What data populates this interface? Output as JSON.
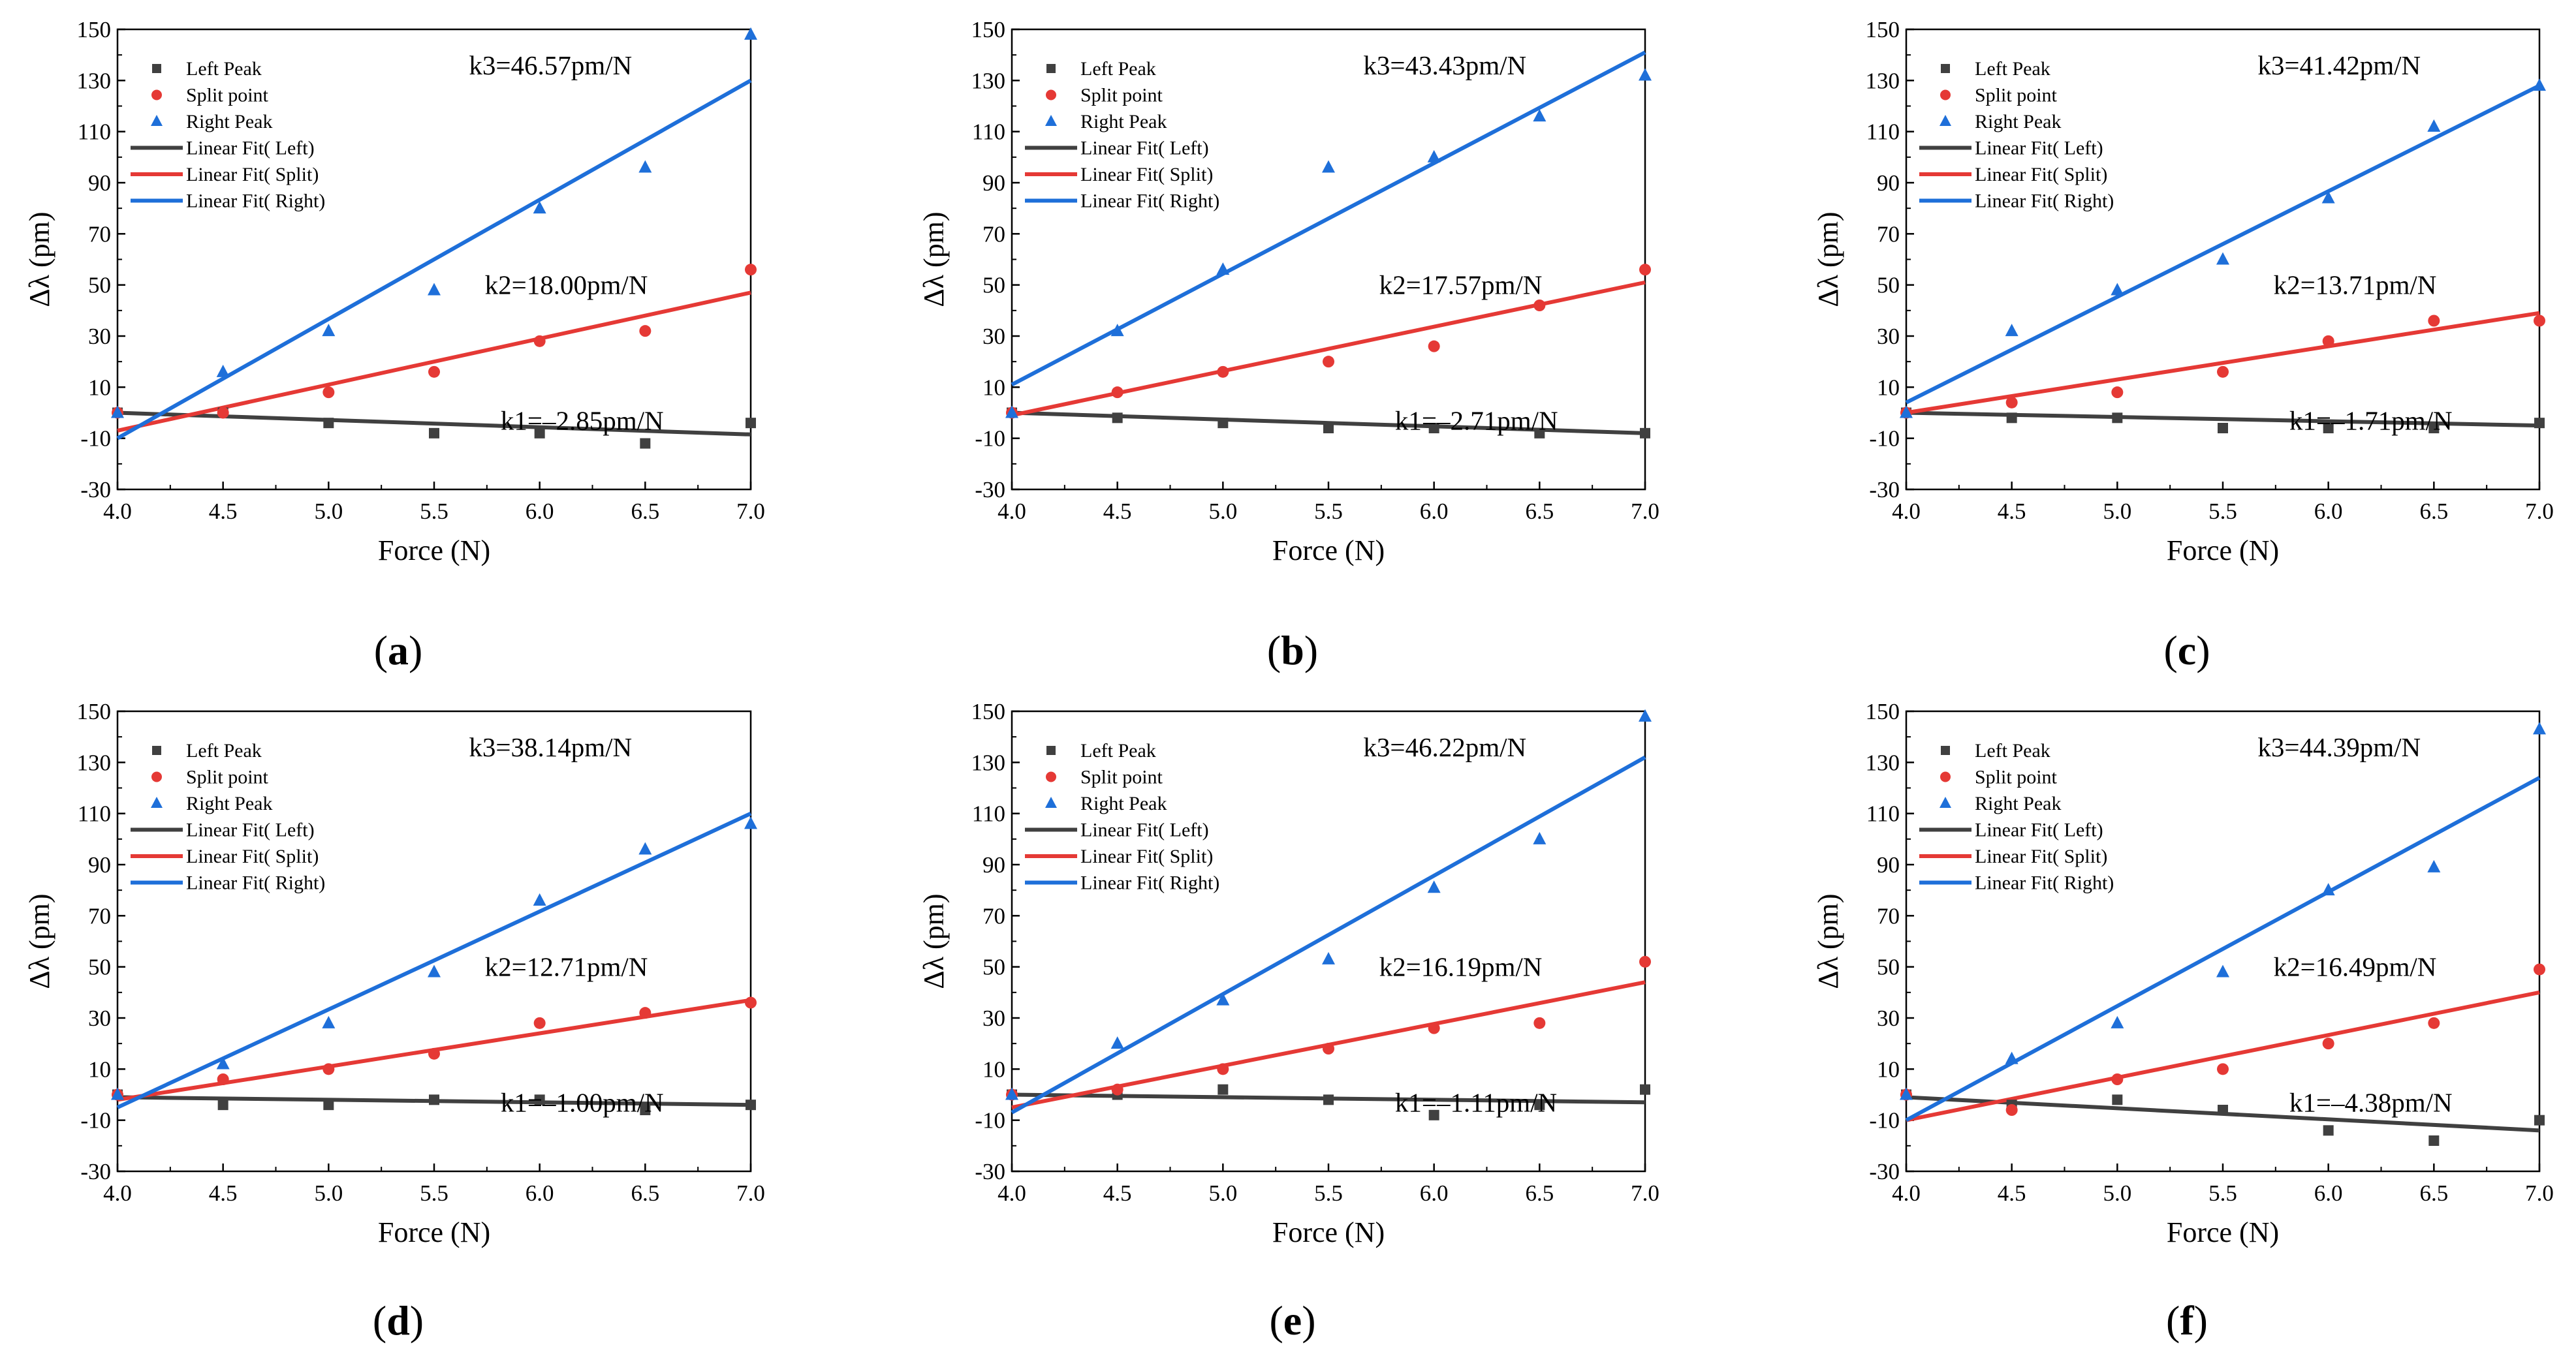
{
  "chart_data": [
    {
      "panel": "a",
      "type": "scatter",
      "xlabel": "Force (N)",
      "ylabel": "Δλ (pm)",
      "xlim": [
        4.0,
        7.0
      ],
      "ylim": [
        -30,
        150
      ],
      "xticks": [
        "4.0",
        "4.5",
        "5.0",
        "5.5",
        "6.0",
        "6.5",
        "7.0"
      ],
      "yticks": [
        "150",
        "130",
        "110",
        "90",
        "70",
        "50",
        "30",
        "10",
        "-10",
        "-30"
      ],
      "x": [
        4.0,
        4.5,
        5.0,
        5.5,
        6.0,
        6.5,
        7.0
      ],
      "series": [
        {
          "name": "Left Peak",
          "color": "#404040",
          "marker": "square",
          "values": [
            0,
            0,
            -4,
            -8,
            -8,
            -12,
            -4
          ]
        },
        {
          "name": "Split point",
          "color": "#e53935",
          "marker": "circle",
          "values": [
            0,
            0,
            8,
            16,
            28,
            32,
            56
          ]
        },
        {
          "name": "Right Peak",
          "color": "#1e6fd9",
          "marker": "triangle",
          "values": [
            0,
            16,
            32,
            48,
            80,
            96,
            148
          ]
        }
      ],
      "fits": [
        {
          "name": "Linear Fit( Left)",
          "color": "#404040",
          "y_start": 0,
          "y_end": -8.5
        },
        {
          "name": "Linear Fit( Split)",
          "color": "#e53935",
          "y_start": -7,
          "y_end": 47
        },
        {
          "name": "Linear Fit( Right)",
          "color": "#1e6fd9",
          "y_start": -10,
          "y_end": 130
        }
      ],
      "annotations": {
        "k3": "k3=46.57pm/N",
        "k2": "k2=18.00pm/N",
        "k1": "k1=–2.85pm/N"
      },
      "ann_pos": {
        "k3": [
          135,
          47
        ],
        "k2": [
          135,
          122
        ],
        "k1": [
          115,
          124
        ]
      }
    },
    {
      "panel": "b",
      "type": "scatter",
      "xlabel": "Force (N)",
      "ylabel": "Δλ (pm)",
      "xlim": [
        4.0,
        7.0
      ],
      "ylim": [
        -30,
        150
      ],
      "xticks": [
        "4.0",
        "4.5",
        "5.0",
        "5.5",
        "6.0",
        "6.5",
        "7.0"
      ],
      "yticks": [
        "150",
        "130",
        "110",
        "90",
        "70",
        "50",
        "30",
        "10",
        "-10",
        "-30"
      ],
      "x": [
        4.0,
        4.5,
        5.0,
        5.5,
        6.0,
        6.5,
        7.0
      ],
      "series": [
        {
          "name": "Left Peak",
          "color": "#404040",
          "marker": "square",
          "values": [
            0,
            -2,
            -4,
            -6,
            -6,
            -8,
            -8
          ]
        },
        {
          "name": "Split point",
          "color": "#e53935",
          "marker": "circle",
          "values": [
            0,
            8,
            16,
            20,
            26,
            42,
            56
          ]
        },
        {
          "name": "Right Peak",
          "color": "#1e6fd9",
          "marker": "triangle",
          "values": [
            0,
            32,
            56,
            96,
            100,
            116,
            132
          ]
        }
      ],
      "fits": [
        {
          "name": "Linear Fit( Left)",
          "color": "#404040",
          "y_start": 0,
          "y_end": -8
        },
        {
          "name": "Linear Fit( Split)",
          "color": "#e53935",
          "y_start": -1,
          "y_end": 51
        },
        {
          "name": "Linear Fit( Right)",
          "color": "#1e6fd9",
          "y_start": 11,
          "y_end": 141
        }
      ],
      "annotations": {
        "k3": "k3=43.43pm/N",
        "k2": "k2=17.57pm/N",
        "k1": "k1=–2.71pm/N"
      },
      "ann_pos": {
        "k3": [
          135,
          47
        ],
        "k2": [
          135,
          122
        ],
        "k1": [
          115,
          124
        ]
      }
    },
    {
      "panel": "c",
      "type": "scatter",
      "xlabel": "Force (N)",
      "ylabel": "Δλ (pm)",
      "xlim": [
        4.0,
        7.0
      ],
      "ylim": [
        -30,
        150
      ],
      "xticks": [
        "4.0",
        "4.5",
        "5.0",
        "5.5",
        "6.0",
        "6.5",
        "7.0"
      ],
      "yticks": [
        "150",
        "130",
        "110",
        "90",
        "70",
        "50",
        "30",
        "10",
        "-10",
        "-30"
      ],
      "x": [
        4.0,
        4.5,
        5.0,
        5.5,
        6.0,
        6.5,
        7.0
      ],
      "series": [
        {
          "name": "Left Peak",
          "color": "#404040",
          "marker": "square",
          "values": [
            0,
            -2,
            -2,
            -6,
            -6,
            -6,
            -4
          ]
        },
        {
          "name": "Split point",
          "color": "#e53935",
          "marker": "circle",
          "values": [
            0,
            4,
            8,
            16,
            28,
            36,
            36
          ]
        },
        {
          "name": "Right Peak",
          "color": "#1e6fd9",
          "marker": "triangle",
          "values": [
            0,
            32,
            48,
            60,
            84,
            112,
            128
          ]
        }
      ],
      "fits": [
        {
          "name": "Linear Fit( Left)",
          "color": "#404040",
          "y_start": 0,
          "y_end": -5
        },
        {
          "name": "Linear Fit( Split)",
          "color": "#e53935",
          "y_start": 0,
          "y_end": 39
        },
        {
          "name": "Linear Fit( Right)",
          "color": "#1e6fd9",
          "y_start": 4,
          "y_end": 128
        }
      ],
      "annotations": {
        "k3": "k3=41.42pm/N",
        "k2": "k2=13.71pm/N",
        "k1": "k1=–1.71pm/N"
      },
      "ann_pos": {
        "k3": [
          135,
          47
        ],
        "k2": [
          135,
          122
        ],
        "k1": [
          115,
          124
        ]
      }
    },
    {
      "panel": "d",
      "type": "scatter",
      "xlabel": "Force (N)",
      "ylabel": "Δλ (pm)",
      "xlim": [
        4.0,
        7.0
      ],
      "ylim": [
        -30,
        150
      ],
      "xticks": [
        "4.0",
        "4.5",
        "5.0",
        "5.5",
        "6.0",
        "6.5",
        "7.0"
      ],
      "yticks": [
        "150",
        "130",
        "110",
        "90",
        "70",
        "50",
        "30",
        "10",
        "-10",
        "-30"
      ],
      "x": [
        4.0,
        4.5,
        5.0,
        5.5,
        6.0,
        6.5,
        7.0
      ],
      "series": [
        {
          "name": "Left Peak",
          "color": "#404040",
          "marker": "square",
          "values": [
            0,
            -4,
            -4,
            -2,
            -2,
            -6,
            -4
          ]
        },
        {
          "name": "Split point",
          "color": "#e53935",
          "marker": "circle",
          "values": [
            0,
            6,
            10,
            16,
            28,
            32,
            36
          ]
        },
        {
          "name": "Right Peak",
          "color": "#1e6fd9",
          "marker": "triangle",
          "values": [
            0,
            12,
            28,
            48,
            76,
            96,
            106
          ]
        }
      ],
      "fits": [
        {
          "name": "Linear Fit( Left)",
          "color": "#404040",
          "y_start": -1,
          "y_end": -4
        },
        {
          "name": "Linear Fit( Split)",
          "color": "#e53935",
          "y_start": -2,
          "y_end": 37
        },
        {
          "name": "Linear Fit( Right)",
          "color": "#1e6fd9",
          "y_start": -5,
          "y_end": 110
        }
      ],
      "annotations": {
        "k3": "k3=38.14pm/N",
        "k2": "k2=12.71pm/N",
        "k1": "k1=–1.00pm/N"
      },
      "ann_pos": {
        "k3": [
          135,
          47
        ],
        "k2": [
          135,
          122
        ],
        "k1": [
          115,
          124
        ]
      }
    },
    {
      "panel": "e",
      "type": "scatter",
      "xlabel": "Force (N)",
      "ylabel": "Δλ (pm)",
      "xlim": [
        4.0,
        7.0
      ],
      "ylim": [
        -30,
        150
      ],
      "xticks": [
        "4.0",
        "4.5",
        "5.0",
        "5.5",
        "6.0",
        "6.5",
        "7.0"
      ],
      "yticks": [
        "150",
        "130",
        "110",
        "90",
        "70",
        "50",
        "30",
        "10",
        "-10",
        "-30"
      ],
      "x": [
        4.0,
        4.5,
        5.0,
        5.5,
        6.0,
        6.5,
        7.0
      ],
      "series": [
        {
          "name": "Left Peak",
          "color": "#404040",
          "marker": "square",
          "values": [
            0,
            0,
            2,
            -2,
            -8,
            -4,
            2
          ]
        },
        {
          "name": "Split point",
          "color": "#e53935",
          "marker": "circle",
          "values": [
            0,
            2,
            10,
            18,
            26,
            28,
            52
          ]
        },
        {
          "name": "Right Peak",
          "color": "#1e6fd9",
          "marker": "triangle",
          "values": [
            0,
            20,
            37,
            53,
            81,
            100,
            148
          ]
        }
      ],
      "fits": [
        {
          "name": "Linear Fit( Left)",
          "color": "#404040",
          "y_start": 0,
          "y_end": -3
        },
        {
          "name": "Linear Fit( Split)",
          "color": "#e53935",
          "y_start": -5,
          "y_end": 44
        },
        {
          "name": "Linear Fit( Right)",
          "color": "#1e6fd9",
          "y_start": -7,
          "y_end": 132
        }
      ],
      "annotations": {
        "k3": "k3=46.22pm/N",
        "k2": "k2=16.19pm/N",
        "k1": "k1=–1.11pm/N"
      },
      "ann_pos": {
        "k3": [
          135,
          47
        ],
        "k2": [
          135,
          122
        ],
        "k1": [
          115,
          124
        ]
      }
    },
    {
      "panel": "f",
      "type": "scatter",
      "xlabel": "Force (N)",
      "ylabel": "Δλ (pm)",
      "xlim": [
        4.0,
        7.0
      ],
      "ylim": [
        -30,
        150
      ],
      "xticks": [
        "4.0",
        "4.5",
        "5.0",
        "5.5",
        "6.0",
        "6.5",
        "7.0"
      ],
      "yticks": [
        "150",
        "130",
        "110",
        "90",
        "70",
        "50",
        "30",
        "10",
        "-10",
        "-30"
      ],
      "x": [
        4.0,
        4.5,
        5.0,
        5.5,
        6.0,
        6.5,
        7.0
      ],
      "series": [
        {
          "name": "Left Peak",
          "color": "#404040",
          "marker": "square",
          "values": [
            0,
            -4,
            -2,
            -6,
            -14,
            -18,
            -10
          ]
        },
        {
          "name": "Split point",
          "color": "#e53935",
          "marker": "circle",
          "values": [
            0,
            -6,
            6,
            10,
            20,
            28,
            49
          ]
        },
        {
          "name": "Right Peak",
          "color": "#1e6fd9",
          "marker": "triangle",
          "values": [
            0,
            14,
            28,
            48,
            80,
            89,
            143
          ]
        }
      ],
      "fits": [
        {
          "name": "Linear Fit( Left)",
          "color": "#404040",
          "y_start": -1,
          "y_end": -14
        },
        {
          "name": "Linear Fit( Split)",
          "color": "#e53935",
          "y_start": -10,
          "y_end": 40
        },
        {
          "name": "Linear Fit( Right)",
          "color": "#1e6fd9",
          "y_start": -10,
          "y_end": 124
        }
      ],
      "annotations": {
        "k3": "k3=44.39pm/N",
        "k2": "k2=16.49pm/N",
        "k1": "k1=–4.38pm/N"
      },
      "ann_pos": {
        "k3": [
          135,
          47
        ],
        "k2": [
          135,
          122
        ],
        "k1": [
          115,
          124
        ]
      }
    }
  ],
  "captions": [
    "(a)",
    "(b)",
    "(c)",
    "(d)",
    "(e)",
    "(f)"
  ]
}
